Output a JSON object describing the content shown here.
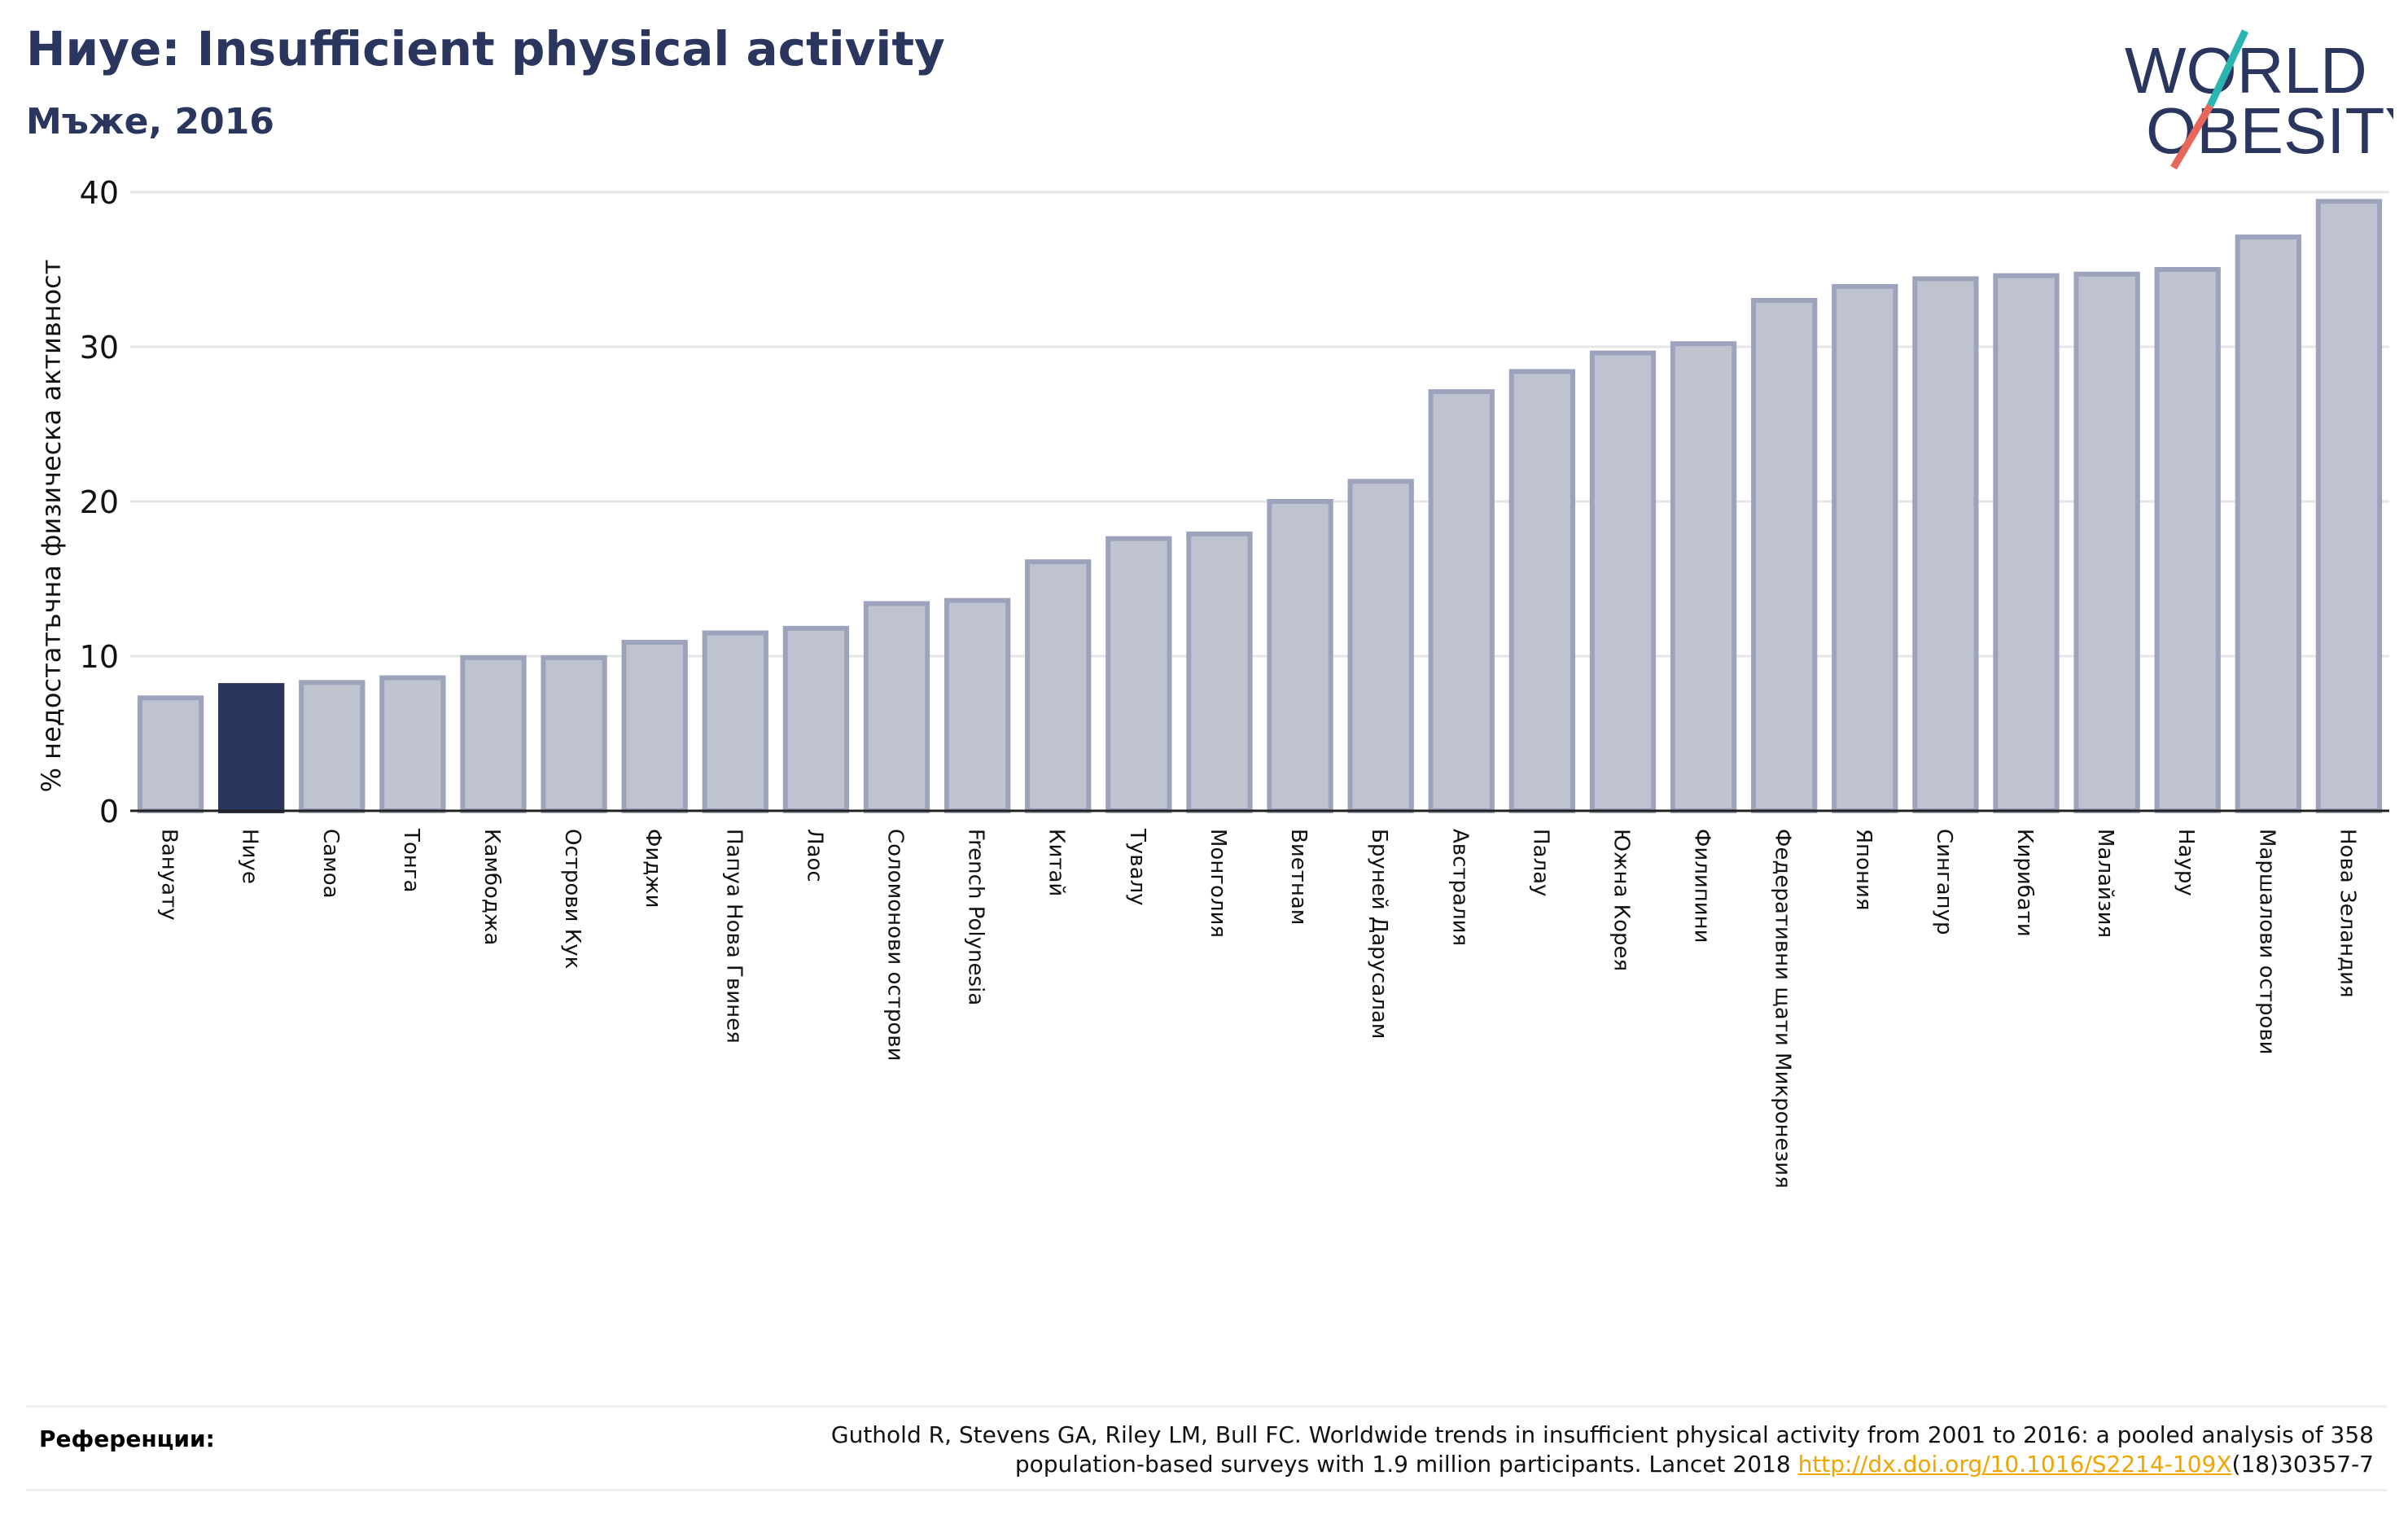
{
  "header": {
    "title": "Ниуе: Insufficient physical activity",
    "subtitle": "Мъже, 2016"
  },
  "logo": {
    "line1": "WORLD",
    "line2": "OBESITY",
    "colors": {
      "text": "#2b365f",
      "slash_top": "#2cb5b0",
      "slash_bottom": "#e8665a"
    }
  },
  "chart_data": {
    "type": "bar",
    "title": "Ниуе: Insufficient physical activity",
    "subtitle": "Мъже, 2016",
    "xlabel": "",
    "ylabel": "% недостатъчна физическа активност",
    "ylim": [
      0,
      40
    ],
    "yticks": [
      0,
      10,
      20,
      30,
      40
    ],
    "grid": true,
    "highlight": "Ниуе",
    "colors": {
      "bar": "#bfc2cf",
      "bar_edge": "#9ea3bd",
      "highlight": "#2b365f"
    },
    "categories": [
      "Вануату",
      "Ниуе",
      "Самоа",
      "Тонга",
      "Камбоджа",
      "Острови Кук",
      "Фиджи",
      "Папуа Нова Гвинея",
      "Лаос",
      "Соломонови острови",
      "French Polynesia",
      "Китай",
      "Тувалу",
      "Монголия",
      "Виетнам",
      "Бруней Дарусалам",
      "Австралия",
      "Палау",
      "Южна Корея",
      "Филипини",
      "Федеративни щати Микронезия",
      "Япония",
      "Сингапур",
      "Кирибати",
      "Малайзия",
      "Науру",
      "Маршалови острови",
      "Нова Зеландия"
    ],
    "values": [
      7.3,
      8.1,
      8.3,
      8.6,
      9.9,
      9.9,
      10.9,
      11.5,
      11.8,
      13.4,
      13.6,
      16.1,
      17.6,
      17.9,
      20.0,
      21.3,
      27.1,
      28.4,
      29.6,
      30.2,
      33.0,
      33.9,
      34.4,
      34.6,
      34.7,
      35.0,
      37.1,
      39.4
    ]
  },
  "references": {
    "label": "Референции:",
    "line1": "Guthold R, Stevens GA, Riley LM, Bull FC. Worldwide trends in insufficient physical activity from 2001 to 2016: a pooled analysis of 358",
    "line2_prefix": "population-based surveys with 1.9 million participants. Lancet 2018 ",
    "link": "http://dx.doi.org/10.1016/S2214-109X",
    "line2_suffix": "(18)30357-7"
  }
}
